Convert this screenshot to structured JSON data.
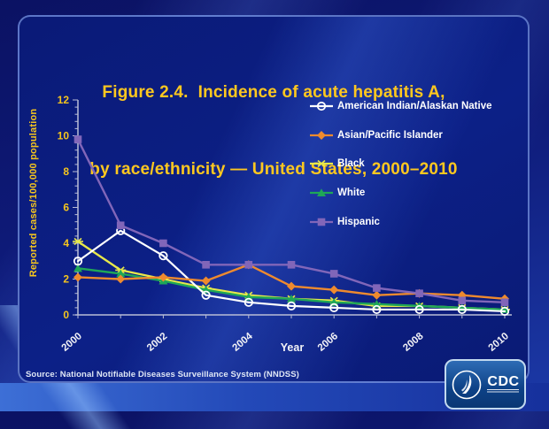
{
  "slide": {
    "title_line1": "Figure 2.4.  Incidence of acute hepatitis A,",
    "title_line2": "by race/ethnicity — United States, 2000–2010",
    "source": "Source: National Notifiable Diseases Surveillance System (NNDSS)",
    "cdc_logo_text": "CDC"
  },
  "chart_data": {
    "type": "line",
    "title": "Incidence of acute hepatitis A, by race/ethnicity — United States, 2000–2010",
    "xlabel": "Year",
    "ylabel": "Reported cases/100,000 population",
    "x": [
      2000,
      2001,
      2002,
      2003,
      2004,
      2005,
      2006,
      2007,
      2008,
      2009,
      2010
    ],
    "xtick_labels": [
      "2000",
      "2002",
      "2004",
      "2006",
      "2008",
      "2010"
    ],
    "ylim": [
      0,
      12
    ],
    "yticks": [
      0,
      2,
      4,
      6,
      8,
      10,
      12
    ],
    "grid": false,
    "legend_position": "upper right",
    "axis_color": "#b9bdd6",
    "ytick_label_color": "#f5c51d",
    "xtick_label_color": "#f2f2f6",
    "series": [
      {
        "name": "American Indian/Alaskan Native",
        "color": "#ffffff",
        "marker": "open-circle",
        "values": [
          3.0,
          4.7,
          3.3,
          1.1,
          0.7,
          0.5,
          0.4,
          0.3,
          0.3,
          0.3,
          0.2
        ]
      },
      {
        "name": "Asian/Pacific Islander",
        "color": "#ee8a2e",
        "marker": "diamond",
        "values": [
          2.1,
          2.0,
          2.1,
          1.9,
          2.8,
          1.6,
          1.4,
          1.1,
          1.2,
          1.1,
          0.9
        ]
      },
      {
        "name": "Black",
        "color": "#e8e84a",
        "marker": "asterisk",
        "values": [
          4.1,
          2.5,
          2.0,
          1.5,
          1.1,
          0.9,
          0.8,
          0.5,
          0.5,
          0.4,
          0.3
        ]
      },
      {
        "name": "White",
        "color": "#1fa757",
        "marker": "triangle",
        "values": [
          2.6,
          2.3,
          1.9,
          1.4,
          1.0,
          0.9,
          0.7,
          0.6,
          0.5,
          0.4,
          0.3
        ]
      },
      {
        "name": "Hispanic",
        "color": "#8166b9",
        "marker": "square",
        "values": [
          9.8,
          5.0,
          4.0,
          2.8,
          2.8,
          2.8,
          2.3,
          1.5,
          1.2,
          0.8,
          0.7
        ]
      }
    ]
  }
}
